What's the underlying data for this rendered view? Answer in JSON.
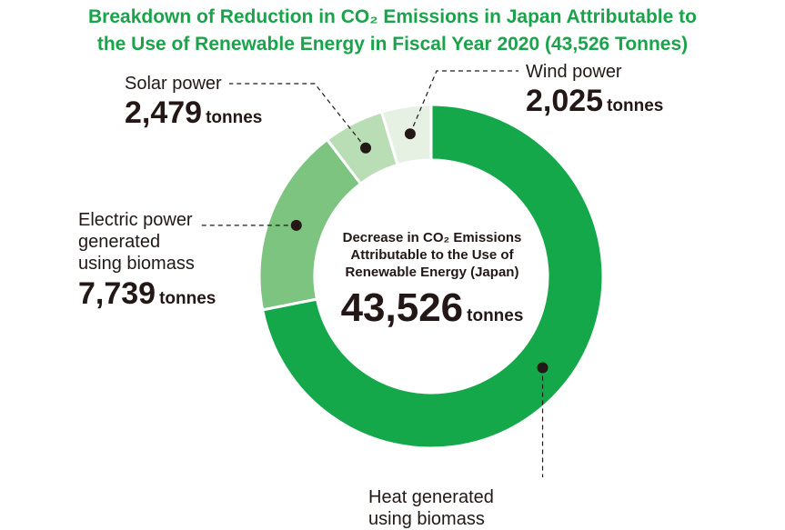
{
  "chart_data": {
    "type": "pie",
    "title_line1": "Breakdown of Reduction in CO₂ Emissions in Japan Attributable to",
    "title_line2": "the Use of Renewable Energy in Fiscal Year 2020 (43,526 Tonnes)",
    "total": 43526,
    "total_display": "43,526",
    "unit": "tonnes",
    "center_label": [
      "Decrease in CO₂ Emissions",
      "Attributable to the Use of",
      "Renewable Energy (Japan)"
    ],
    "slices": [
      {
        "key": "heat",
        "label": [
          "Heat generated",
          "using biomass"
        ],
        "value": 31283,
        "display": "",
        "color": "#15a84b"
      },
      {
        "key": "electric",
        "label": [
          "Electric power",
          "generated",
          "using biomass"
        ],
        "value": 7739,
        "display": "7,739",
        "color": "#7cc47f"
      },
      {
        "key": "solar",
        "label": [
          "Solar power"
        ],
        "value": 2479,
        "display": "2,479",
        "color": "#b9ddb5"
      },
      {
        "key": "wind",
        "label": [
          "Wind power"
        ],
        "value": 2025,
        "display": "2,025",
        "color": "#e6f1e4"
      }
    ]
  }
}
